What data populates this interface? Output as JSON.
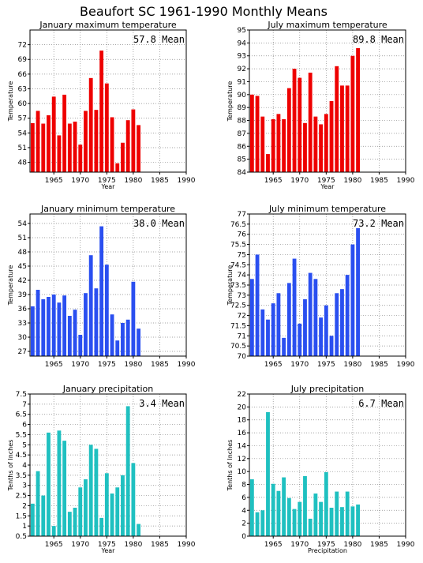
{
  "title": "Beaufort SC  1961-1990 Monthly Means",
  "colors": {
    "red": "#ee0000",
    "blue": "#2a4ff0",
    "teal": "#1fc0c0"
  },
  "chart_data": [
    {
      "type": "bar",
      "title": "January maximum temperature",
      "mean_label": "57.8 Mean",
      "xlabel": "Year",
      "ylabel": "Temperature",
      "color": "red",
      "x": [
        1961,
        1962,
        1963,
        1964,
        1965,
        1966,
        1967,
        1968,
        1969,
        1970,
        1971,
        1972,
        1973,
        1974,
        1975,
        1976,
        1977,
        1978,
        1979,
        1980,
        1981
      ],
      "values": [
        56.0,
        58.5,
        55.9,
        57.6,
        61.4,
        53.5,
        61.8,
        55.9,
        56.3,
        51.6,
        58.5,
        65.2,
        58.7,
        70.8,
        64.1,
        57.2,
        47.8,
        52.0,
        56.6,
        58.8,
        55.6
      ],
      "xlim": [
        1960.5,
        1990
      ],
      "ylim": [
        46,
        75
      ],
      "x_ticks": [
        1965,
        1970,
        1975,
        1980,
        1985,
        1990
      ],
      "y_ticks": [
        48,
        51,
        54,
        57,
        60,
        63,
        66,
        69,
        72
      ]
    },
    {
      "type": "bar",
      "title": "July maximum temperature",
      "mean_label": "89.8 Mean",
      "xlabel": "Year",
      "ylabel": "Temperature",
      "color": "red",
      "x": [
        1961,
        1962,
        1963,
        1964,
        1965,
        1966,
        1967,
        1968,
        1969,
        1970,
        1971,
        1972,
        1973,
        1974,
        1975,
        1976,
        1977,
        1978,
        1979,
        1980,
        1981
      ],
      "values": [
        90.0,
        89.9,
        88.3,
        85.4,
        88.1,
        88.5,
        88.1,
        90.5,
        92.0,
        91.3,
        87.8,
        91.7,
        88.3,
        87.7,
        88.5,
        89.5,
        92.2,
        90.7,
        90.7,
        93.0,
        93.6
      ],
      "xlim": [
        1960.5,
        1990
      ],
      "ylim": [
        84,
        95
      ],
      "x_ticks": [
        1965,
        1970,
        1975,
        1980,
        1985,
        1990
      ],
      "y_ticks": [
        84,
        85,
        86,
        87,
        88,
        89,
        90,
        91,
        92,
        93,
        94,
        95
      ]
    },
    {
      "type": "bar",
      "title": "January minimum temperature",
      "mean_label": "38.0 Mean",
      "xlabel": "",
      "ylabel": "Temperature",
      "color": "blue",
      "x": [
        1961,
        1962,
        1963,
        1964,
        1965,
        1966,
        1967,
        1968,
        1969,
        1970,
        1971,
        1972,
        1973,
        1974,
        1975,
        1976,
        1977,
        1978,
        1979,
        1980,
        1981
      ],
      "values": [
        36.5,
        40.0,
        38.0,
        38.5,
        39.0,
        37.3,
        38.8,
        34.5,
        35.8,
        30.5,
        39.3,
        47.3,
        40.3,
        53.4,
        45.3,
        34.8,
        29.3,
        33.0,
        33.7,
        41.7,
        31.8
      ],
      "xlim": [
        1960.5,
        1990
      ],
      "ylim": [
        26,
        56
      ],
      "x_ticks": [
        1965,
        1970,
        1975,
        1980,
        1985,
        1990
      ],
      "y_ticks": [
        27,
        30,
        33,
        36,
        39,
        42,
        45,
        48,
        51,
        54
      ]
    },
    {
      "type": "bar",
      "title": "July minimum temperature",
      "mean_label": "73.2 Mean",
      "xlabel": "",
      "ylabel": "Temperature",
      "color": "blue",
      "x": [
        1961,
        1962,
        1963,
        1964,
        1965,
        1966,
        1967,
        1968,
        1969,
        1970,
        1971,
        1972,
        1973,
        1974,
        1975,
        1976,
        1977,
        1978,
        1979,
        1980,
        1981
      ],
      "values": [
        73.8,
        75.0,
        72.3,
        71.8,
        72.6,
        73.1,
        70.9,
        73.6,
        74.8,
        71.6,
        72.8,
        74.1,
        73.8,
        71.9,
        72.5,
        71.0,
        73.1,
        73.3,
        74.0,
        75.5,
        76.3
      ],
      "xlim": [
        1960.5,
        1990
      ],
      "ylim": [
        70,
        77
      ],
      "x_ticks": [
        1965,
        1970,
        1975,
        1980,
        1985,
        1990
      ],
      "y_ticks": [
        70,
        70.5,
        71,
        71.5,
        72,
        72.5,
        73,
        73.5,
        74,
        74.5,
        75,
        75.5,
        76,
        76.5,
        77
      ]
    },
    {
      "type": "bar",
      "title": "January precipitation",
      "mean_label": "3.4 Mean",
      "xlabel": "Year",
      "ylabel": "Tenths of Inches",
      "color": "teal",
      "x": [
        1961,
        1962,
        1963,
        1964,
        1965,
        1966,
        1967,
        1968,
        1969,
        1970,
        1971,
        1972,
        1973,
        1974,
        1975,
        1976,
        1977,
        1978,
        1979,
        1980,
        1981
      ],
      "values": [
        2.1,
        3.7,
        2.5,
        5.6,
        1.0,
        5.7,
        5.2,
        1.7,
        1.9,
        2.9,
        3.3,
        5.0,
        4.8,
        1.4,
        3.6,
        2.6,
        2.9,
        3.5,
        6.9,
        4.1,
        1.1
      ],
      "xlim": [
        1960.5,
        1990
      ],
      "ylim": [
        0.5,
        7.5
      ],
      "x_ticks": [
        1965,
        1970,
        1975,
        1980,
        1985,
        1990
      ],
      "y_ticks": [
        0.5,
        1,
        1.5,
        2,
        2.5,
        3,
        3.5,
        4,
        4.5,
        5,
        5.5,
        6,
        6.5,
        7,
        7.5
      ]
    },
    {
      "type": "bar",
      "title": "July precipitation",
      "mean_label": "6.7 Mean",
      "xlabel": "Precipitation",
      "ylabel": "Tenths of Inches",
      "color": "teal",
      "x": [
        1961,
        1962,
        1963,
        1964,
        1965,
        1966,
        1967,
        1968,
        1969,
        1970,
        1971,
        1972,
        1973,
        1974,
        1975,
        1976,
        1977,
        1978,
        1979,
        1980,
        1981
      ],
      "values": [
        8.8,
        3.7,
        4.0,
        19.2,
        8.1,
        7.0,
        9.1,
        5.9,
        4.2,
        5.3,
        9.3,
        2.7,
        6.6,
        5.3,
        9.9,
        4.4,
        6.9,
        4.5,
        6.9,
        4.6,
        4.9
      ],
      "xlim": [
        1960.5,
        1990
      ],
      "ylim": [
        0,
        22
      ],
      "x_ticks": [
        1965,
        1970,
        1975,
        1980,
        1985,
        1990
      ],
      "y_ticks": [
        0,
        2,
        4,
        6,
        8,
        10,
        12,
        14,
        16,
        18,
        20,
        22
      ]
    }
  ]
}
